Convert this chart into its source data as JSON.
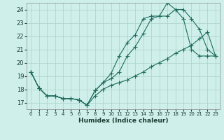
{
  "xlabel": "Humidex (Indice chaleur)",
  "bg_color": "#cff0ea",
  "grid_color": "#aacfc8",
  "line_color": "#1e6b5e",
  "xlim": [
    -0.5,
    23.5
  ],
  "ylim": [
    16.5,
    24.5
  ],
  "xticks": [
    0,
    1,
    2,
    3,
    4,
    5,
    6,
    7,
    8,
    9,
    10,
    11,
    12,
    13,
    14,
    15,
    16,
    17,
    18,
    19,
    20,
    21,
    22,
    23
  ],
  "yticks": [
    17,
    18,
    19,
    20,
    21,
    22,
    23,
    24
  ],
  "line1_x": [
    0,
    1,
    2,
    3,
    4,
    5,
    6,
    7,
    8,
    9,
    10,
    11,
    12,
    13,
    14,
    15,
    16,
    17,
    18,
    19,
    20,
    21,
    22,
    23
  ],
  "line1_y": [
    19.3,
    18.1,
    17.5,
    17.5,
    17.3,
    17.3,
    17.2,
    16.8,
    17.9,
    18.5,
    18.8,
    19.3,
    20.5,
    21.2,
    22.2,
    23.3,
    23.5,
    23.5,
    24.0,
    23.3,
    21.0,
    20.5,
    20.5,
    20.5
  ],
  "line2_x": [
    0,
    1,
    2,
    3,
    4,
    5,
    6,
    7,
    8,
    9,
    10,
    11,
    12,
    13,
    14,
    15,
    16,
    17,
    18,
    19,
    20,
    21,
    22,
    23
  ],
  "line2_y": [
    19.3,
    18.1,
    17.5,
    17.5,
    17.3,
    17.3,
    17.2,
    16.8,
    17.9,
    18.5,
    19.2,
    20.5,
    21.5,
    22.1,
    23.3,
    23.5,
    23.5,
    24.5,
    24.0,
    24.0,
    23.3,
    22.5,
    21.0,
    20.5
  ],
  "line3_x": [
    0,
    1,
    2,
    3,
    4,
    5,
    6,
    7,
    8,
    9,
    10,
    11,
    12,
    13,
    14,
    15,
    16,
    17,
    18,
    19,
    20,
    21,
    22,
    23
  ],
  "line3_y": [
    19.3,
    18.1,
    17.5,
    17.5,
    17.3,
    17.3,
    17.2,
    16.8,
    17.5,
    18.0,
    18.3,
    18.5,
    18.7,
    19.0,
    19.3,
    19.7,
    20.0,
    20.3,
    20.7,
    21.0,
    21.3,
    21.8,
    22.3,
    20.5
  ]
}
